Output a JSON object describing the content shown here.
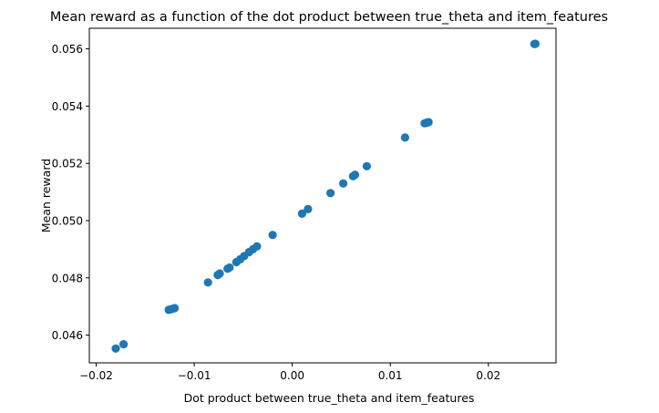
{
  "chart_data": {
    "type": "scatter",
    "title": "Mean reward as a function of the dot product between true_theta and item_features",
    "xlabel": "Dot product between true_theta and item_features",
    "ylabel": "Mean reward",
    "xlim": [
      -0.0207,
      0.0269
    ],
    "ylim": [
      0.04503,
      0.05672
    ],
    "xticks": [
      -0.02,
      -0.01,
      0.0,
      0.01,
      0.02
    ],
    "xtick_labels": [
      "−0.02",
      "−0.01",
      "0.00",
      "0.01",
      "0.02"
    ],
    "yticks": [
      0.046,
      0.048,
      0.05,
      0.052,
      0.054,
      0.056
    ],
    "ytick_labels": [
      "0.046",
      "0.048",
      "0.050",
      "0.052",
      "0.054",
      "0.056"
    ],
    "grid": false,
    "marker_color": "#1f77b4",
    "points": [
      [
        -0.018,
        0.04553
      ],
      [
        -0.0172,
        0.04568
      ],
      [
        -0.0126,
        0.04688
      ],
      [
        -0.0124,
        0.0469
      ],
      [
        -0.0122,
        0.04692
      ],
      [
        -0.012,
        0.04694
      ],
      [
        -0.0086,
        0.04784
      ],
      [
        -0.0076,
        0.0481
      ],
      [
        -0.0074,
        0.04815
      ],
      [
        -0.0066,
        0.04832
      ],
      [
        -0.0064,
        0.04836
      ],
      [
        -0.0057,
        0.04855
      ],
      [
        -0.0053,
        0.04865
      ],
      [
        -0.0049,
        0.04876
      ],
      [
        -0.0044,
        0.0489
      ],
      [
        -0.004,
        0.049
      ],
      [
        -0.0036,
        0.0491
      ],
      [
        -0.002,
        0.0495
      ],
      [
        0.001,
        0.05024
      ],
      [
        0.0016,
        0.0504
      ],
      [
        0.0039,
        0.05096
      ],
      [
        0.0052,
        0.0513
      ],
      [
        0.0062,
        0.05155
      ],
      [
        0.0064,
        0.0516
      ],
      [
        0.0076,
        0.0519
      ],
      [
        0.0115,
        0.0529
      ],
      [
        0.0135,
        0.0534
      ],
      [
        0.0137,
        0.05342
      ],
      [
        0.0139,
        0.05344
      ],
      [
        0.0247,
        0.05617
      ],
      [
        0.0248,
        0.05618
      ]
    ]
  }
}
